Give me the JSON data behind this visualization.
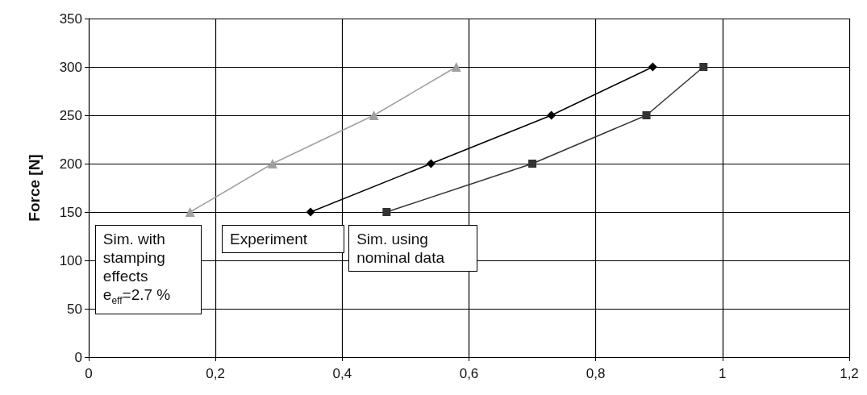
{
  "chart_data": {
    "type": "line",
    "ylabel": "Force [N]",
    "xlim": [
      0,
      1.2
    ],
    "xticks": [
      0,
      {
        "value": 0.2,
        "label": "0,2"
      },
      {
        "value": 0.4,
        "label": "0,4"
      },
      {
        "value": 0.6,
        "label": "0,6"
      },
      {
        "value": 0.8,
        "label": "0,8"
      },
      1,
      {
        "value": 1.2,
        "label": "1,2"
      }
    ],
    "ylim": [
      0,
      350
    ],
    "yticks": [
      0,
      50,
      100,
      150,
      200,
      250,
      300,
      350
    ],
    "grid": true,
    "legend": false,
    "line_style": "solid",
    "series": [
      {
        "name": "Sim. with stamping effects e$_{eff}$=2.7 %",
        "color": "#a0a0a0",
        "marker": "triangle",
        "x": [
          0.16,
          0.29,
          0.45,
          0.58
        ],
        "values": [
          150,
          200,
          250,
          300
        ]
      },
      {
        "name": "Experiment",
        "color": "#000000",
        "marker": "diamond",
        "x": [
          0.35,
          0.54,
          0.73,
          0.89
        ],
        "values": [
          150,
          200,
          250,
          300
        ]
      },
      {
        "name": "Sim. using nominal data",
        "color": "#333333",
        "marker": "square",
        "x": [
          0.47,
          0.7,
          0.88,
          0.97
        ],
        "values": [
          150,
          200,
          250,
          300
        ]
      }
    ]
  }
}
